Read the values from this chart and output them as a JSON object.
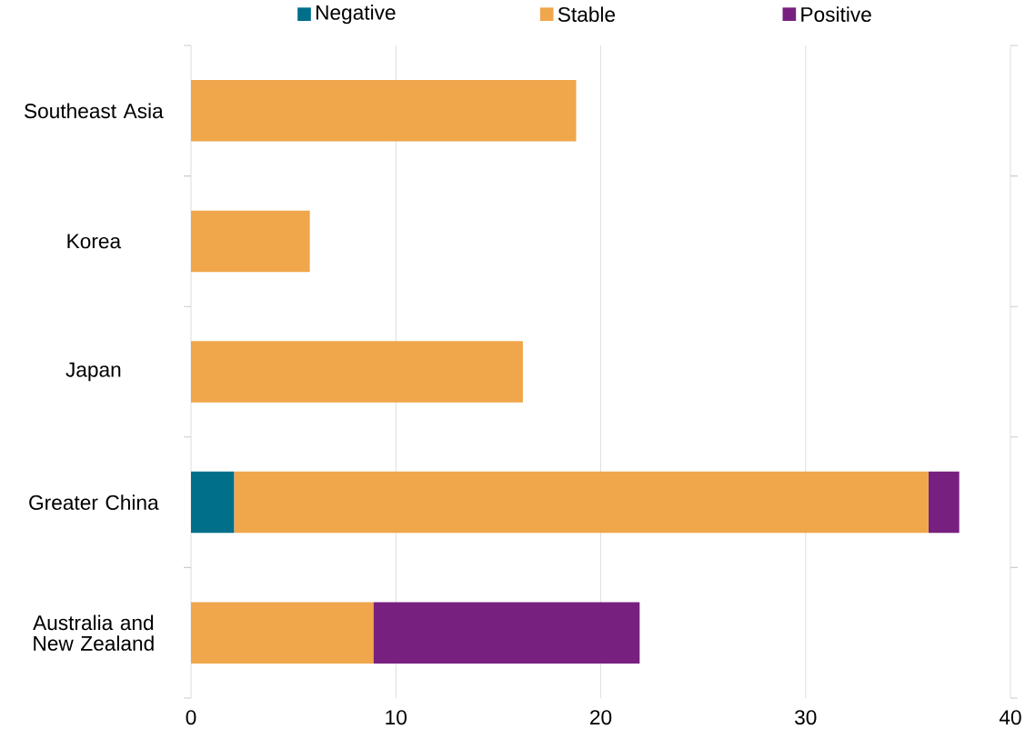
{
  "chart_data": {
    "type": "bar",
    "orientation": "horizontal",
    "stacked": true,
    "categories": [
      "Southeast Asia",
      "Korea",
      "Japan",
      "Greater China",
      "Australia and New Zealand"
    ],
    "series": [
      {
        "name": "Negative",
        "color": "#006f8a",
        "values": [
          null,
          null,
          null,
          2.1,
          null
        ]
      },
      {
        "name": "Stable",
        "color": "#f0a64b",
        "values": [
          18.8,
          5.8,
          16.2,
          33.9,
          8.9
        ]
      },
      {
        "name": "Positive",
        "color": "#78207f",
        "values": [
          null,
          null,
          null,
          1.5,
          13.0
        ]
      }
    ],
    "xlim": [
      0,
      40
    ],
    "xticks": [
      0,
      10,
      20,
      30,
      40
    ],
    "grid": "x",
    "legend": "top"
  }
}
